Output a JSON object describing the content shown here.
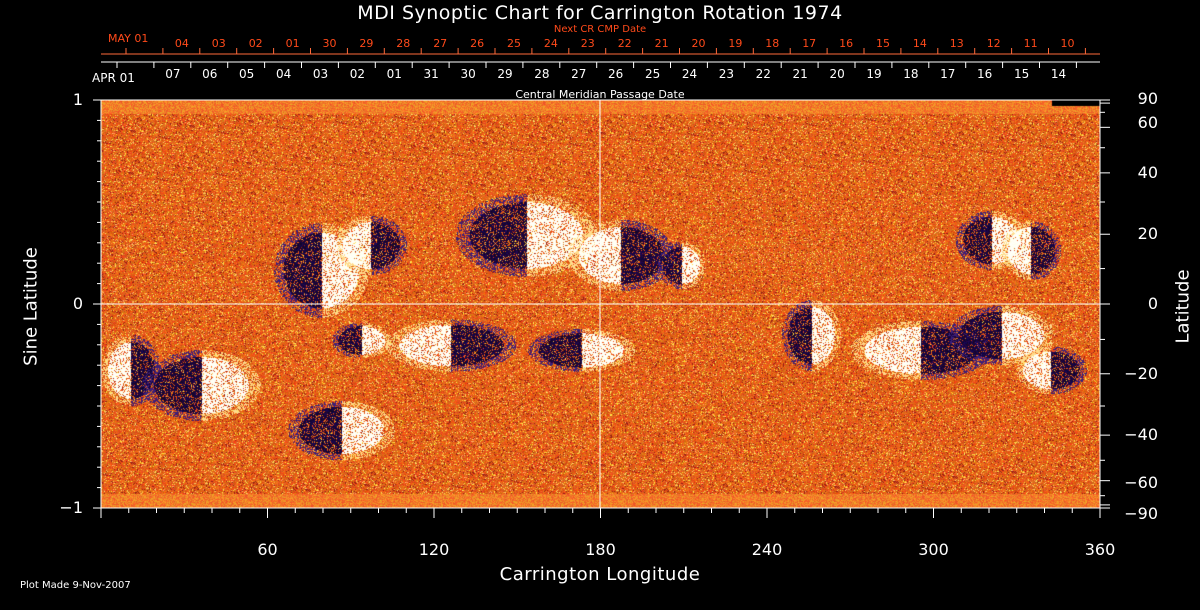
{
  "title": "MDI Synoptic Chart for Carrington Rotation 1974",
  "next_cr_label": "Next CR CMP Date",
  "cmp_date_label": "Central Meridian Passage Date",
  "top_red_dates": [
    "MAY 01",
    "04",
    "03",
    "02",
    "01",
    "30",
    "29",
    "28",
    "27",
    "26",
    "25",
    "24",
    "23",
    "22",
    "21",
    "20",
    "19",
    "18",
    "17",
    "16",
    "15",
    "14",
    "13",
    "12",
    "11",
    "10"
  ],
  "top_white_dates": [
    "APR 01",
    "07",
    "06",
    "05",
    "04",
    "03",
    "02",
    "01",
    "31",
    "30",
    "29",
    "28",
    "27",
    "26",
    "25",
    "24",
    "23",
    "22",
    "21",
    "20",
    "19",
    "18",
    "17",
    "16",
    "15",
    "14"
  ],
  "x_axis": {
    "label": "Carrington Longitude",
    "ticks": [
      "60",
      "120",
      "180",
      "240",
      "300",
      "360"
    ]
  },
  "y_axis_left": {
    "label": "Sine Latitude",
    "ticks": [
      "1",
      "0",
      "−1"
    ]
  },
  "y_axis_right": {
    "label": "Latitude",
    "ticks": [
      "90",
      "60",
      "40",
      "20",
      "0",
      "−20",
      "−40",
      "−60",
      "−90"
    ]
  },
  "footer": "Plot Made  9-Nov-2007",
  "colors": {
    "background": "#000000",
    "map_base": "#d4501a",
    "red_text": "#ff4a1a",
    "positive": "#ffffff",
    "negative": "#1a1240"
  }
}
